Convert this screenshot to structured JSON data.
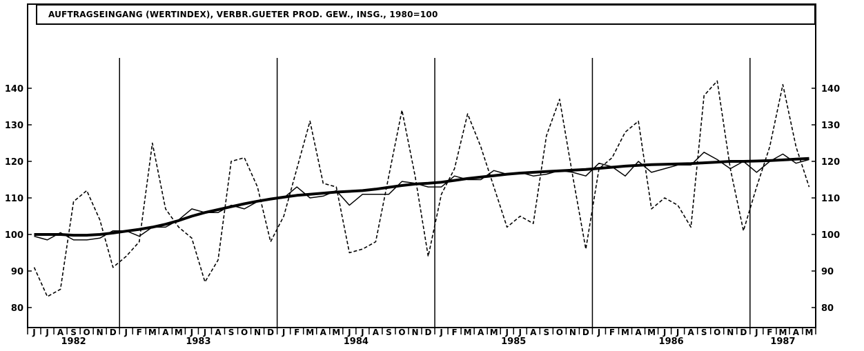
{
  "chart_data": {
    "type": "line",
    "title": "AUFTRAGSEINGANG (WERTINDEX), VERBR.GUETER PROD. GEW., INSG., 1980=100",
    "xlabel": "",
    "ylabel": "",
    "ylim": [
      75,
      153
    ],
    "yticks": [
      80,
      90,
      100,
      110,
      120,
      130,
      140
    ],
    "grid": false,
    "months": [
      "J",
      "J",
      "A",
      "S",
      "O",
      "N",
      "D",
      "J",
      "F",
      "M",
      "A",
      "M",
      "J",
      "J",
      "A",
      "S",
      "O",
      "N",
      "D",
      "J",
      "F",
      "M",
      "A",
      "M",
      "J",
      "J",
      "A",
      "S",
      "O",
      "N",
      "D",
      "J",
      "F",
      "M",
      "A",
      "M",
      "J",
      "J",
      "A",
      "S",
      "O",
      "N",
      "D",
      "J",
      "F",
      "M",
      "A",
      "M",
      "J",
      "J",
      "A",
      "S",
      "O",
      "N",
      "D",
      "J",
      "F",
      "M",
      "A",
      "M"
    ],
    "years": [
      {
        "label": "1982",
        "start": 0,
        "end": 7
      },
      {
        "label": "1983",
        "start": 7,
        "end": 19
      },
      {
        "label": "1984",
        "start": 19,
        "end": 31
      },
      {
        "label": "1985",
        "start": 31,
        "end": 43
      },
      {
        "label": "1986",
        "start": 43,
        "end": 55
      },
      {
        "label": "1987",
        "start": 55,
        "end": 60
      }
    ],
    "series": [
      {
        "style": "dashed",
        "values": [
          91,
          83,
          85,
          109,
          112,
          104,
          91,
          94,
          98,
          125,
          107,
          102,
          99,
          87,
          93,
          120,
          121,
          113,
          98,
          105,
          118,
          131,
          114,
          113,
          95,
          96,
          98,
          116,
          134,
          116,
          94,
          111,
          118,
          133,
          124,
          113,
          102,
          105,
          103,
          127,
          137,
          116,
          96,
          118,
          121,
          128,
          131,
          107,
          110,
          108,
          102,
          138,
          142,
          118,
          101,
          113,
          124,
          141,
          124,
          113
        ]
      },
      {
        "style": "thin",
        "values": [
          99.5,
          98.5,
          100.5,
          98.5,
          98.5,
          99,
          101,
          101,
          99.5,
          102,
          102,
          104,
          107,
          106,
          106,
          108,
          107,
          109,
          109.5,
          110,
          113,
          110,
          110.5,
          112,
          108,
          111,
          111,
          111,
          114.5,
          114,
          113,
          113,
          116,
          115,
          115,
          117.5,
          116.5,
          117,
          116,
          116.5,
          117.5,
          117,
          116,
          119.5,
          118.5,
          116,
          120,
          117,
          118,
          119,
          119,
          122.5,
          120.5,
          118,
          120,
          117,
          120,
          122,
          119.5,
          120.5
        ]
      },
      {
        "style": "thick",
        "values": [
          100,
          100,
          100,
          99.8,
          99.8,
          100,
          100.4,
          100.9,
          101.4,
          102,
          102.8,
          103.8,
          105,
          106,
          106.8,
          107.6,
          108.4,
          109.1,
          109.7,
          110.2,
          110.7,
          111,
          111.3,
          111.6,
          111.8,
          112,
          112.4,
          112.9,
          113.4,
          113.8,
          114,
          114.3,
          114.8,
          115.3,
          115.7,
          116.1,
          116.5,
          116.8,
          117,
          117.2,
          117.4,
          117.6,
          117.8,
          118.1,
          118.4,
          118.7,
          118.9,
          119.1,
          119.2,
          119.3,
          119.4,
          119.6,
          119.8,
          120,
          120,
          120.1,
          120.2,
          120.4,
          120.6,
          120.8
        ]
      }
    ]
  }
}
